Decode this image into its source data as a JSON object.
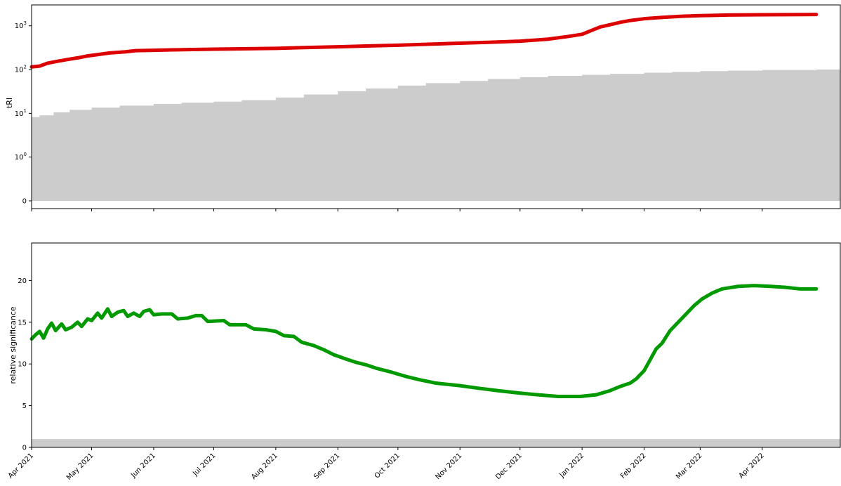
{
  "chart_data": [
    {
      "type": "line",
      "title": "",
      "xlabel": "",
      "ylabel": "tRI",
      "yscale": "symlog",
      "ylim": [
        0,
        3000
      ],
      "y_ticks": [
        {
          "value": 0,
          "label": "0"
        },
        {
          "value": 1,
          "label": "10",
          "exp": "0"
        },
        {
          "value": 10,
          "label": "10",
          "exp": "1"
        },
        {
          "value": 100,
          "label": "10",
          "exp": "2"
        },
        {
          "value": 1000,
          "label": "10",
          "exp": "3"
        }
      ],
      "grid": false,
      "series": [
        {
          "color": "#dd0000",
          "points": [
            [
              "2021-04-01",
              115
            ],
            [
              "2021-04-05",
              120
            ],
            [
              "2021-04-09",
              140
            ],
            [
              "2021-04-14",
              155
            ],
            [
              "2021-04-19",
              170
            ],
            [
              "2021-04-24",
              185
            ],
            [
              "2021-04-29",
              205
            ],
            [
              "2021-05-04",
              220
            ],
            [
              "2021-05-10",
              240
            ],
            [
              "2021-05-18",
              255
            ],
            [
              "2021-05-23",
              270
            ],
            [
              "2021-06-01",
              275
            ],
            [
              "2021-06-10",
              282
            ],
            [
              "2021-06-20",
              287
            ],
            [
              "2021-07-01",
              292
            ],
            [
              "2021-07-15",
              298
            ],
            [
              "2021-08-01",
              305
            ],
            [
              "2021-08-15",
              318
            ],
            [
              "2021-09-01",
              332
            ],
            [
              "2021-09-15",
              345
            ],
            [
              "2021-10-01",
              360
            ],
            [
              "2021-10-15",
              378
            ],
            [
              "2021-11-01",
              400
            ],
            [
              "2021-11-15",
              420
            ],
            [
              "2021-12-01",
              445
            ],
            [
              "2021-12-15",
              495
            ],
            [
              "2021-12-25",
              570
            ],
            [
              "2022-01-01",
              640
            ],
            [
              "2022-01-05",
              760
            ],
            [
              "2022-01-10",
              940
            ],
            [
              "2022-01-15",
              1060
            ],
            [
              "2022-01-20",
              1200
            ],
            [
              "2022-01-25",
              1320
            ],
            [
              "2022-02-01",
              1450
            ],
            [
              "2022-02-10",
              1560
            ],
            [
              "2022-02-20",
              1650
            ],
            [
              "2022-03-01",
              1710
            ],
            [
              "2022-03-15",
              1760
            ],
            [
              "2022-04-01",
              1790
            ],
            [
              "2022-04-28",
              1810
            ]
          ]
        }
      ],
      "fill": {
        "color": "#cccccc",
        "points": [
          [
            "2021-04-01",
            8.2
          ],
          [
            "2021-04-05",
            9.0
          ],
          [
            "2021-04-12",
            10.5
          ],
          [
            "2021-04-20",
            12.0
          ],
          [
            "2021-05-01",
            13.5
          ],
          [
            "2021-05-15",
            15.0
          ],
          [
            "2021-06-01",
            16.5
          ],
          [
            "2021-06-15",
            17.5
          ],
          [
            "2021-07-01",
            18.5
          ],
          [
            "2021-07-15",
            20.0
          ],
          [
            "2021-08-01",
            23.0
          ],
          [
            "2021-08-15",
            27.0
          ],
          [
            "2021-09-01",
            32.0
          ],
          [
            "2021-09-15",
            37.0
          ],
          [
            "2021-10-01",
            43.0
          ],
          [
            "2021-10-15",
            49.0
          ],
          [
            "2021-11-01",
            55.0
          ],
          [
            "2021-11-15",
            61.0
          ],
          [
            "2021-12-01",
            67.0
          ],
          [
            "2021-12-15",
            72.0
          ],
          [
            "2022-01-01",
            76.0
          ],
          [
            "2022-01-15",
            80.0
          ],
          [
            "2022-02-01",
            85.0
          ],
          [
            "2022-02-15",
            88.0
          ],
          [
            "2022-03-01",
            92.0
          ],
          [
            "2022-03-15",
            95.0
          ],
          [
            "2022-04-01",
            98.0
          ],
          [
            "2022-04-28",
            100.0
          ]
        ]
      }
    },
    {
      "type": "line",
      "title": "",
      "xlabel": "",
      "ylabel": "relative significance",
      "ylim": [
        0,
        24.5
      ],
      "y_ticks": [
        {
          "value": 0,
          "label": "0"
        },
        {
          "value": 5,
          "label": "5"
        },
        {
          "value": 10,
          "label": "10"
        },
        {
          "value": 15,
          "label": "15"
        },
        {
          "value": 20,
          "label": "20"
        }
      ],
      "grid": false,
      "series": [
        {
          "color": "#009900",
          "points": [
            [
              "2021-04-01",
              13.0
            ],
            [
              "2021-04-03",
              13.5
            ],
            [
              "2021-04-05",
              13.9
            ],
            [
              "2021-04-07",
              13.1
            ],
            [
              "2021-04-09",
              14.2
            ],
            [
              "2021-04-11",
              14.9
            ],
            [
              "2021-04-13",
              14.0
            ],
            [
              "2021-04-16",
              14.8
            ],
            [
              "2021-04-18",
              14.1
            ],
            [
              "2021-04-21",
              14.4
            ],
            [
              "2021-04-24",
              15.0
            ],
            [
              "2021-04-26",
              14.5
            ],
            [
              "2021-04-29",
              15.4
            ],
            [
              "2021-05-01",
              15.2
            ],
            [
              "2021-05-04",
              16.1
            ],
            [
              "2021-05-06",
              15.5
            ],
            [
              "2021-05-09",
              16.6
            ],
            [
              "2021-05-11",
              15.7
            ],
            [
              "2021-05-14",
              16.2
            ],
            [
              "2021-05-17",
              16.4
            ],
            [
              "2021-05-19",
              15.7
            ],
            [
              "2021-05-22",
              16.1
            ],
            [
              "2021-05-25",
              15.7
            ],
            [
              "2021-05-27",
              16.3
            ],
            [
              "2021-05-30",
              16.5
            ],
            [
              "2021-06-01",
              15.9
            ],
            [
              "2021-06-05",
              16.0
            ],
            [
              "2021-06-10",
              16.0
            ],
            [
              "2021-06-13",
              15.4
            ],
            [
              "2021-06-18",
              15.5
            ],
            [
              "2021-06-22",
              15.8
            ],
            [
              "2021-06-25",
              15.8
            ],
            [
              "2021-06-28",
              15.1
            ],
            [
              "2021-07-06",
              15.2
            ],
            [
              "2021-07-09",
              14.7
            ],
            [
              "2021-07-17",
              14.7
            ],
            [
              "2021-07-21",
              14.2
            ],
            [
              "2021-07-27",
              14.1
            ],
            [
              "2021-08-01",
              13.9
            ],
            [
              "2021-08-05",
              13.4
            ],
            [
              "2021-08-10",
              13.3
            ],
            [
              "2021-08-14",
              12.6
            ],
            [
              "2021-08-20",
              12.2
            ],
            [
              "2021-08-25",
              11.7
            ],
            [
              "2021-08-30",
              11.1
            ],
            [
              "2021-09-05",
              10.6
            ],
            [
              "2021-09-10",
              10.2
            ],
            [
              "2021-09-15",
              9.9
            ],
            [
              "2021-09-20",
              9.5
            ],
            [
              "2021-09-28",
              9.0
            ],
            [
              "2021-10-05",
              8.5
            ],
            [
              "2021-10-12",
              8.1
            ],
            [
              "2021-10-20",
              7.7
            ],
            [
              "2021-11-01",
              7.4
            ],
            [
              "2021-11-10",
              7.1
            ],
            [
              "2021-11-20",
              6.8
            ],
            [
              "2021-12-01",
              6.5
            ],
            [
              "2021-12-10",
              6.3
            ],
            [
              "2021-12-20",
              6.1
            ],
            [
              "2021-12-31",
              6.1
            ],
            [
              "2022-01-08",
              6.3
            ],
            [
              "2022-01-15",
              6.8
            ],
            [
              "2022-01-20",
              7.3
            ],
            [
              "2022-01-25",
              7.7
            ],
            [
              "2022-01-28",
              8.2
            ],
            [
              "2022-02-01",
              9.2
            ],
            [
              "2022-02-04",
              10.5
            ],
            [
              "2022-02-07",
              11.8
            ],
            [
              "2022-02-10",
              12.5
            ],
            [
              "2022-02-14",
              14.0
            ],
            [
              "2022-02-18",
              15.0
            ],
            [
              "2022-02-22",
              16.0
            ],
            [
              "2022-02-26",
              17.0
            ],
            [
              "2022-03-02",
              17.8
            ],
            [
              "2022-03-07",
              18.5
            ],
            [
              "2022-03-12",
              19.0
            ],
            [
              "2022-03-20",
              19.3
            ],
            [
              "2022-03-28",
              19.4
            ],
            [
              "2022-04-05",
              19.3
            ],
            [
              "2022-04-12",
              19.2
            ],
            [
              "2022-04-20",
              19.0
            ],
            [
              "2022-04-28",
              19.0
            ]
          ]
        }
      ],
      "fill": {
        "color": "#cccccc",
        "level": 1.0
      }
    }
  ],
  "x_axis": {
    "range": [
      "2021-04-01",
      "2022-05-10"
    ],
    "ticks": [
      {
        "date": "2021-04-01",
        "label": "Apr 2021"
      },
      {
        "date": "2021-05-01",
        "label": "May 2021"
      },
      {
        "date": "2021-06-01",
        "label": "Jun 2021"
      },
      {
        "date": "2021-07-01",
        "label": "Jul 2021"
      },
      {
        "date": "2021-08-01",
        "label": "Aug 2021"
      },
      {
        "date": "2021-09-01",
        "label": "Sep 2021"
      },
      {
        "date": "2021-10-01",
        "label": "Oct 2021"
      },
      {
        "date": "2021-11-01",
        "label": "Nov 2021"
      },
      {
        "date": "2021-12-01",
        "label": "Dec 2021"
      },
      {
        "date": "2022-01-01",
        "label": "Jan 2022"
      },
      {
        "date": "2022-02-01",
        "label": "Feb 2022"
      },
      {
        "date": "2022-03-01",
        "label": "Mar 2022"
      },
      {
        "date": "2022-04-01",
        "label": "Apr 2022"
      }
    ]
  }
}
